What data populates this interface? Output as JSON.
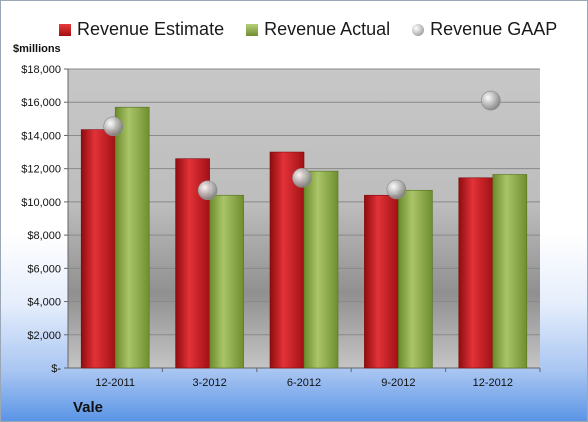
{
  "legend": {
    "estimate": "Revenue Estimate",
    "actual": "Revenue Actual",
    "gaap": "Revenue GAAP"
  },
  "unit_label": "$millions",
  "company": "Vale",
  "colors": {
    "estimate": "#c8191e",
    "actual": "#8fad4a",
    "gaap": "#b8b8b8"
  },
  "chart_data": {
    "type": "bar",
    "categories": [
      "12-2011",
      "3-2012",
      "6-2012",
      "9-2012",
      "12-2012"
    ],
    "series": [
      {
        "name": "Revenue Estimate",
        "values": [
          14350,
          12600,
          13000,
          10400,
          11450
        ]
      },
      {
        "name": "Revenue Actual",
        "values": [
          15700,
          10400,
          11850,
          10700,
          11650
        ]
      },
      {
        "name": "Revenue GAAP",
        "values": [
          14550,
          10700,
          11450,
          10750,
          16100
        ]
      }
    ],
    "ylabel": "$millions",
    "ylim": [
      0,
      18000
    ],
    "yticks": [
      {
        "value": 0,
        "label": "$-"
      },
      {
        "value": 2000,
        "label": "$2,000"
      },
      {
        "value": 4000,
        "label": "$4,000"
      },
      {
        "value": 6000,
        "label": "$6,000"
      },
      {
        "value": 8000,
        "label": "$8,000"
      },
      {
        "value": 10000,
        "label": "$10,000"
      },
      {
        "value": 12000,
        "label": "$12,000"
      },
      {
        "value": 14000,
        "label": "$14,000"
      },
      {
        "value": 16000,
        "label": "$16,000"
      },
      {
        "value": 18000,
        "label": "$18,000"
      }
    ],
    "grid": true,
    "legend_position": "top"
  }
}
